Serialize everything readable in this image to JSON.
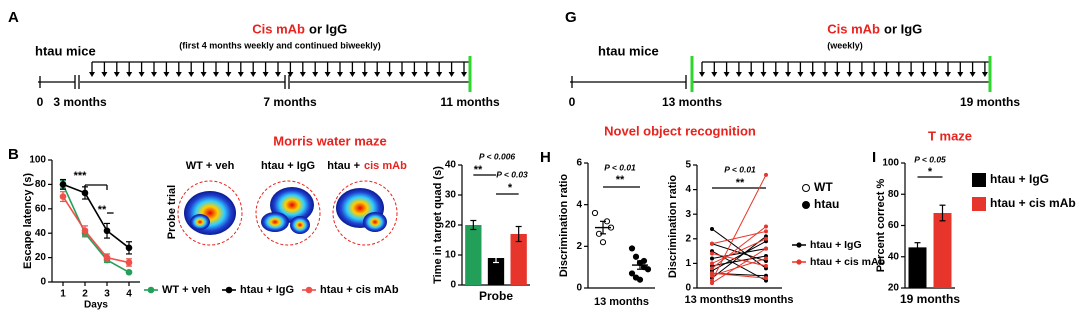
{
  "panels": {
    "a": "A",
    "g": "G",
    "b": "B",
    "h": "H",
    "i": "I"
  },
  "timelines": [
    {
      "treatment": "Cis mAb",
      "treatment_rest": "or IgG",
      "schedule": "(first 4 months weekly and continued biweekly)",
      "subject": "htau mice",
      "labels": [
        "0",
        "3 months",
        "7 months",
        "11 months"
      ]
    },
    {
      "treatment": "Cis mAb",
      "treatment_rest": "or IgG",
      "schedule": "(weekly)",
      "subject": "htau mice",
      "labels": [
        "0",
        "13 months",
        "19 months"
      ]
    }
  ],
  "morris": {
    "title": "Morris water maze",
    "probe_trial": "Probe trial",
    "conditions": [
      {
        "label": "WT + veh"
      },
      {
        "label": "htau + IgG"
      },
      {
        "label": "htau +",
        "label_red": "cis mAb"
      }
    ]
  },
  "novel_object": {
    "title": "Novel object recognition"
  },
  "t_maze": {
    "title": "T maze"
  },
  "chart_data": [
    {
      "type": "line",
      "y_label": "Escape latency (s)",
      "x_label": "Days",
      "x": [
        1,
        2,
        3,
        4
      ],
      "xlim": [
        0.5,
        4.5
      ],
      "xticks": [
        1,
        2,
        3,
        4
      ],
      "ylim": [
        0,
        100
      ],
      "yticks": [
        0,
        20,
        40,
        60,
        80,
        100
      ],
      "series": [
        {
          "name": "WT + veh",
          "color": "#22a05a",
          "values": [
            80,
            40,
            18,
            8
          ],
          "errors": [
            3,
            3,
            2,
            1
          ]
        },
        {
          "name": "htau + IgG",
          "color": "#000000",
          "values": [
            80,
            73,
            42,
            28
          ],
          "errors": [
            4,
            5,
            6,
            5
          ]
        },
        {
          "name": "htau + cis mAb",
          "color": "#f0504a",
          "values": [
            70,
            42,
            20,
            16
          ],
          "errors": [
            4,
            4,
            3,
            3
          ]
        }
      ],
      "annotations": [
        "***",
        "**"
      ]
    },
    {
      "type": "bar",
      "y_label": "Time in target quad (s)",
      "x_label": "Probe",
      "values": [
        20,
        9,
        17
      ],
      "errors": [
        1.5,
        1.5,
        2.5
      ],
      "colors": [
        "#22a05a",
        "#000000",
        "#e8352b"
      ],
      "ylim": [
        0,
        40
      ],
      "yticks": [
        0,
        10,
        20,
        30,
        40
      ],
      "annotations": [
        "P < 0.006",
        "**",
        "P < 0.03",
        "*"
      ]
    },
    {
      "type": "scatter",
      "y_label": "Discrimination ratio",
      "x_label": "13 months",
      "ylim": [
        0,
        6
      ],
      "yticks": [
        0,
        2,
        4,
        6
      ],
      "series": [
        {
          "name": "WT",
          "color": "#22a05a",
          "marker": "open",
          "values": [
            3.6,
            2.6,
            2.2,
            3.2,
            2.9
          ],
          "mean": 2.9,
          "error": 0.3
        },
        {
          "name": "htau",
          "color": "#000000",
          "marker": "filled",
          "values": [
            1.9,
            1.5,
            1.2,
            1.0,
            0.9,
            0.7,
            0.5,
            0.4,
            1.3
          ],
          "mean": 1.1,
          "error": 0.2
        }
      ],
      "annotations": [
        "P < 0.01",
        "**"
      ]
    },
    {
      "type": "paired",
      "y_label": "Discrimination ratio",
      "categories": [
        "13 months",
        "19 months"
      ],
      "ylim": [
        0,
        5
      ],
      "yticks": [
        0,
        1,
        2,
        3,
        4,
        5
      ],
      "series": [
        {
          "name": "htau + IgG",
          "color": "#000000",
          "values": [
            [
              2.4,
              0.8
            ],
            [
              1.8,
              1.1
            ],
            [
              1.2,
              1.6
            ],
            [
              0.9,
              1.3
            ],
            [
              0.6,
              0.5
            ],
            [
              0.4,
              2.1
            ],
            [
              1.5,
              0.3
            ],
            [
              0.7,
              1.9
            ]
          ]
        },
        {
          "name": "htau + cis mAb",
          "color": "#e8352b",
          "values": [
            [
              0.3,
              4.6
            ],
            [
              0.8,
              2.5
            ],
            [
              1.0,
              2.0
            ],
            [
              0.5,
              1.2
            ],
            [
              1.4,
              0.9
            ],
            [
              0.2,
              1.6
            ],
            [
              1.8,
              2.3
            ],
            [
              0.6,
              0.4
            ]
          ]
        }
      ],
      "annotations": [
        "P < 0.01",
        "**"
      ]
    },
    {
      "type": "bar",
      "y_label": "Percent correct %",
      "x_label": "19 months",
      "values": [
        46,
        68
      ],
      "errors": [
        3,
        5
      ],
      "colors": [
        "#000000",
        "#e8352b"
      ],
      "legend": [
        "htau + IgG",
        "htau + cis mAb"
      ],
      "ylim": [
        20,
        100
      ],
      "yticks": [
        20,
        40,
        60,
        80,
        100
      ],
      "annotations": [
        "P < 0.05",
        "*"
      ]
    }
  ]
}
